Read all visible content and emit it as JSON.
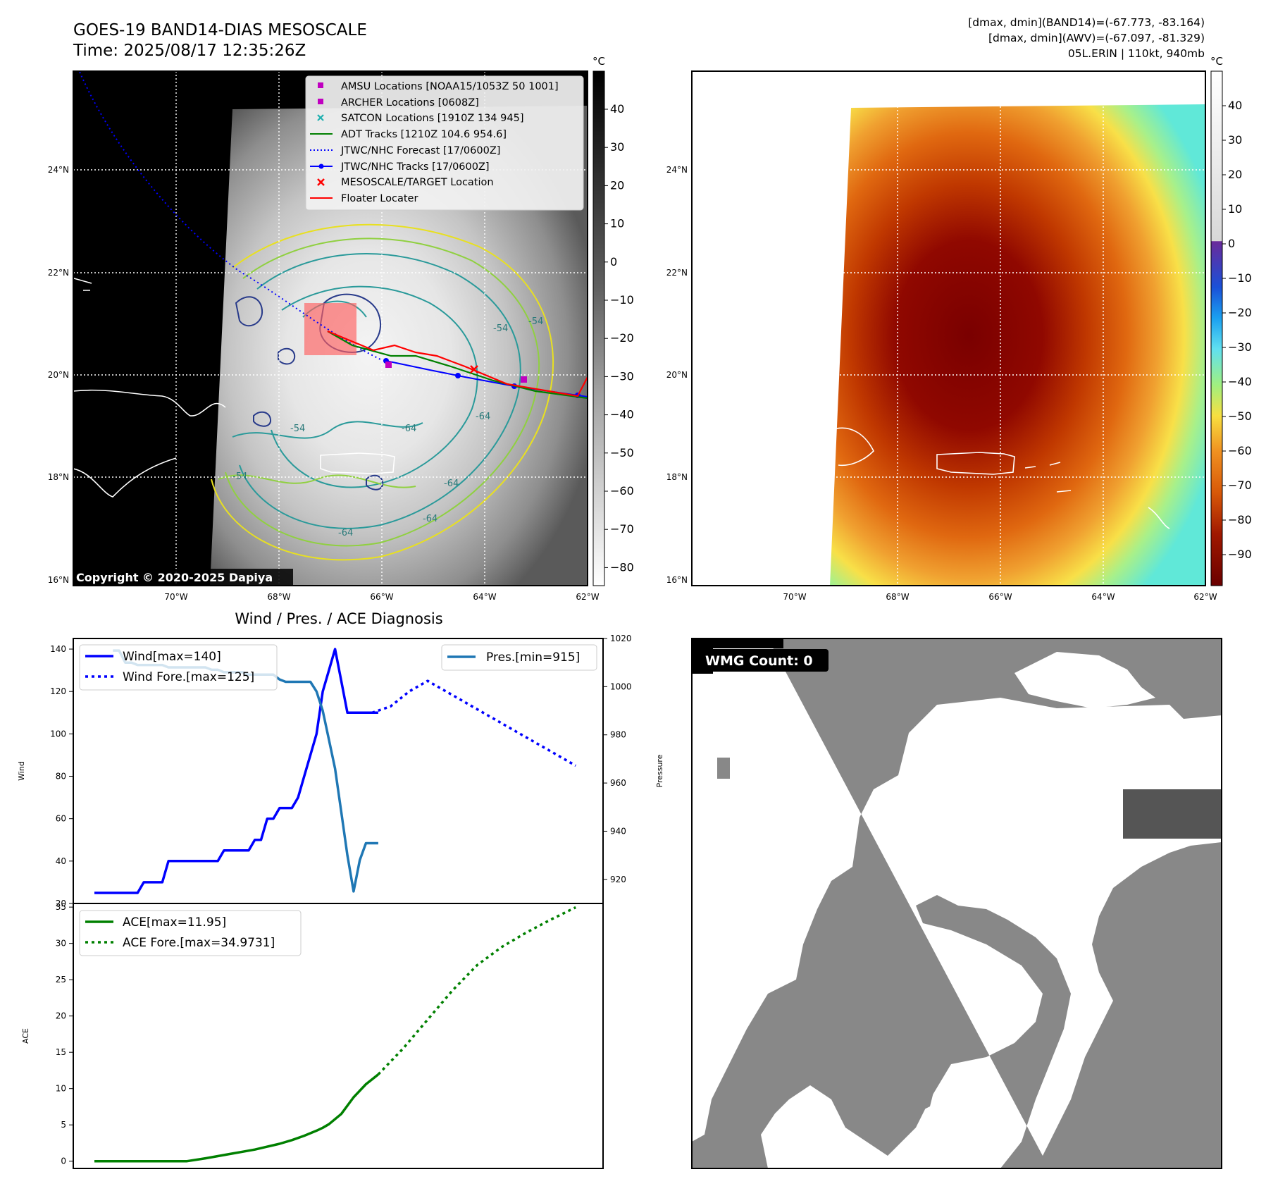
{
  "header": {
    "title_line1": "GOES-19 BAND14-DIAS MESOSCALE",
    "title_line2": "Time: 2025/08/17 12:35:26Z",
    "info_line1": "[dmax, dmin](BAND14)=(-67.773, -83.164)",
    "info_line2": "[dmax, dmin](AWV)=(-67.097, -81.329)",
    "info_line3": "05L.ERIN | 110kt, 940mb"
  },
  "map_common": {
    "lat_ticks": [
      "24°N",
      "22°N",
      "20°N",
      "18°N",
      "16°N"
    ],
    "lon_ticks": [
      "70°W",
      "68°W",
      "66°W",
      "64°W",
      "62°W"
    ],
    "colorbar_unit": "°C"
  },
  "ir_map": {
    "colorbar_ticks": [
      "40",
      "30",
      "20",
      "10",
      "0",
      "−10",
      "−20",
      "−30",
      "−40",
      "−50",
      "−60",
      "−70",
      "−80"
    ],
    "copyright": "Copyright © 2020-2025 Dapiya",
    "contour_labels": [
      "-54",
      "-64",
      "-64",
      "-54",
      "-64",
      "-64",
      "-54",
      "-54",
      "-64"
    ],
    "legend": [
      {
        "label": "AMSU Locations [NOAA15/1053Z 50 1001]",
        "marker": "square",
        "color": "#c000c0"
      },
      {
        "label": "ARCHER Locations [0608Z]",
        "marker": "square",
        "color": "#c000c0"
      },
      {
        "label": "SATCON Locations [1910Z 134 945]",
        "marker": "x",
        "color": "#20b0b0"
      },
      {
        "label": "ADT Tracks [1210Z 104.6 954.6]",
        "marker": "line",
        "color": "#008000"
      },
      {
        "label": "JTWC/NHC Forecast [17/0600Z]",
        "marker": "dotted",
        "color": "#0000ff"
      },
      {
        "label": "JTWC/NHC Tracks [17/0600Z]",
        "marker": "line-dot",
        "color": "#0000ff"
      },
      {
        "label": "MESOSCALE/TARGET Location",
        "marker": "x",
        "color": "#ff0000"
      },
      {
        "label": "Floater Locater",
        "marker": "line",
        "color": "#ff0000"
      }
    ]
  },
  "enh_map": {
    "colorbar_ticks": [
      "40",
      "30",
      "20",
      "10",
      "0",
      "−10",
      "−20",
      "−30",
      "−40",
      "−50",
      "−60",
      "−70",
      "−80",
      "−90"
    ]
  },
  "wmg": {
    "label": "WMG Count: 0"
  },
  "chart_data": [
    {
      "type": "line",
      "title": "Wind / Pres. / ACE Diagnosis",
      "ylabel": "Wind",
      "ylim": [
        20,
        145
      ],
      "yticks": [
        20,
        40,
        60,
        80,
        100,
        120,
        140
      ],
      "y2label": "Pressure",
      "y2lim": [
        910,
        1020
      ],
      "y2ticks": [
        920,
        940,
        960,
        980,
        1000,
        1020
      ],
      "x_count": 80,
      "series": [
        {
          "name": "Wind[max=140]",
          "axis": "left",
          "style": "solid",
          "color": "#0000ff",
          "x": [
            0,
            7,
            8,
            9,
            10,
            11,
            12,
            13,
            14,
            15,
            16,
            17,
            18,
            19,
            20,
            21,
            22,
            23,
            24,
            25,
            26,
            27,
            28,
            29,
            30,
            31,
            32,
            33,
            34,
            35,
            36,
            37,
            38,
            39,
            40,
            41,
            42,
            43,
            44,
            45,
            46
          ],
          "values": [
            25,
            25,
            30,
            30,
            30,
            30,
            40,
            40,
            40,
            40,
            40,
            40,
            40,
            40,
            40,
            45,
            45,
            45,
            45,
            45,
            50,
            50,
            60,
            60,
            65,
            65,
            65,
            70,
            80,
            90,
            100,
            120,
            130,
            140,
            125,
            110,
            110,
            110,
            110,
            110,
            110
          ]
        },
        {
          "name": "Wind Fore.[max=125]",
          "axis": "left",
          "style": "dotted",
          "color": "#0000ff",
          "x": [
            45,
            48,
            51,
            54,
            57,
            60,
            63,
            66,
            69,
            72,
            75,
            78
          ],
          "values": [
            110,
            113,
            120,
            125,
            120,
            115,
            110,
            105,
            100,
            95,
            90,
            85
          ]
        },
        {
          "name": "Pres.[min=915]",
          "axis": "right",
          "style": "solid",
          "color": "#1f77b4",
          "x": [
            3,
            4,
            5,
            6,
            7,
            8,
            9,
            10,
            11,
            12,
            13,
            14,
            15,
            16,
            17,
            18,
            19,
            20,
            21,
            22,
            23,
            24,
            25,
            26,
            27,
            28,
            29,
            30,
            31,
            32,
            33,
            34,
            35,
            36,
            37,
            38,
            39,
            40,
            41,
            42,
            43,
            44,
            45,
            46
          ],
          "values": [
            1015,
            1015,
            1010,
            1010,
            1009,
            1009,
            1009,
            1009,
            1009,
            1008,
            1008,
            1008,
            1008,
            1008,
            1008,
            1008,
            1007,
            1007,
            1006,
            1006,
            1006,
            1006,
            1005,
            1005,
            1005,
            1005,
            1005,
            1003,
            1002,
            1002,
            1002,
            1002,
            1002,
            998,
            990,
            978,
            966,
            948,
            930,
            915,
            928,
            935,
            935,
            935
          ]
        }
      ]
    },
    {
      "type": "line",
      "ylabel": "ACE",
      "ylim": [
        -1,
        35.5
      ],
      "yticks": [
        0,
        5,
        10,
        15,
        20,
        25,
        30,
        35
      ],
      "x_count": 80,
      "series": [
        {
          "name": "ACE[max=11.95]",
          "style": "solid",
          "color": "#008000",
          "x": [
            0,
            10,
            15,
            18,
            20,
            22,
            24,
            26,
            28,
            30,
            32,
            34,
            36,
            37,
            38,
            40,
            42,
            44,
            46
          ],
          "values": [
            0,
            0,
            0,
            0.4,
            0.7,
            1.0,
            1.3,
            1.6,
            2.0,
            2.4,
            2.9,
            3.5,
            4.2,
            4.6,
            5.1,
            6.5,
            8.8,
            10.6,
            11.95
          ]
        },
        {
          "name": "ACE Fore.[max=34.9731]",
          "style": "dotted",
          "color": "#008000",
          "x": [
            46,
            50,
            54,
            58,
            62,
            66,
            70,
            74,
            78
          ],
          "values": [
            11.95,
            15.5,
            19.5,
            23.5,
            27.0,
            29.5,
            31.5,
            33.3,
            34.97
          ]
        }
      ]
    }
  ]
}
